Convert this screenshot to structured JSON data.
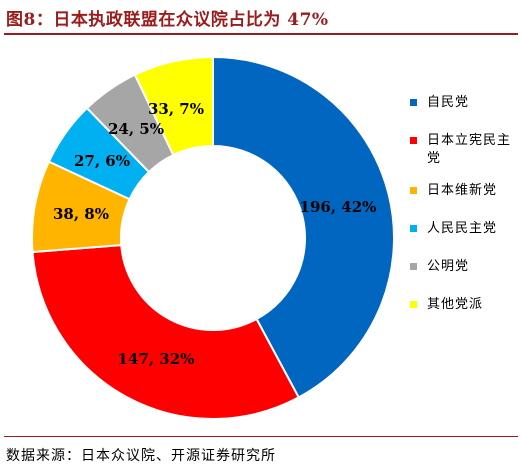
{
  "page": {
    "title": "图8：日本执政联盟在众议院占比为 47%",
    "source": "数据来源：日本众议院、开源证券研究所"
  },
  "chart_data": {
    "type": "pie",
    "variant": "donut",
    "start_angle_deg": 0,
    "direction": "clockwise",
    "legend_position": "right",
    "slices": [
      {
        "name": "自民党",
        "value": 196,
        "percent": 42,
        "label": "196, 42%",
        "color": "#0066bf"
      },
      {
        "name": "日本立宪民主党",
        "value": 147,
        "percent": 32,
        "label": "147, 32%",
        "color": "#ff0000"
      },
      {
        "name": "日本维新党",
        "value": 38,
        "percent": 8,
        "label": "38, 8%",
        "color": "#ffb400"
      },
      {
        "name": "人民民主党",
        "value": 27,
        "percent": 6,
        "label": "27, 6%",
        "color": "#00b0f0"
      },
      {
        "name": "公明党",
        "value": 24,
        "percent": 5,
        "label": "24, 5%",
        "color": "#a6a6a6"
      },
      {
        "name": "其他党派",
        "value": 33,
        "percent": 7,
        "label": "33, 7%",
        "color": "#ffff00"
      }
    ]
  }
}
